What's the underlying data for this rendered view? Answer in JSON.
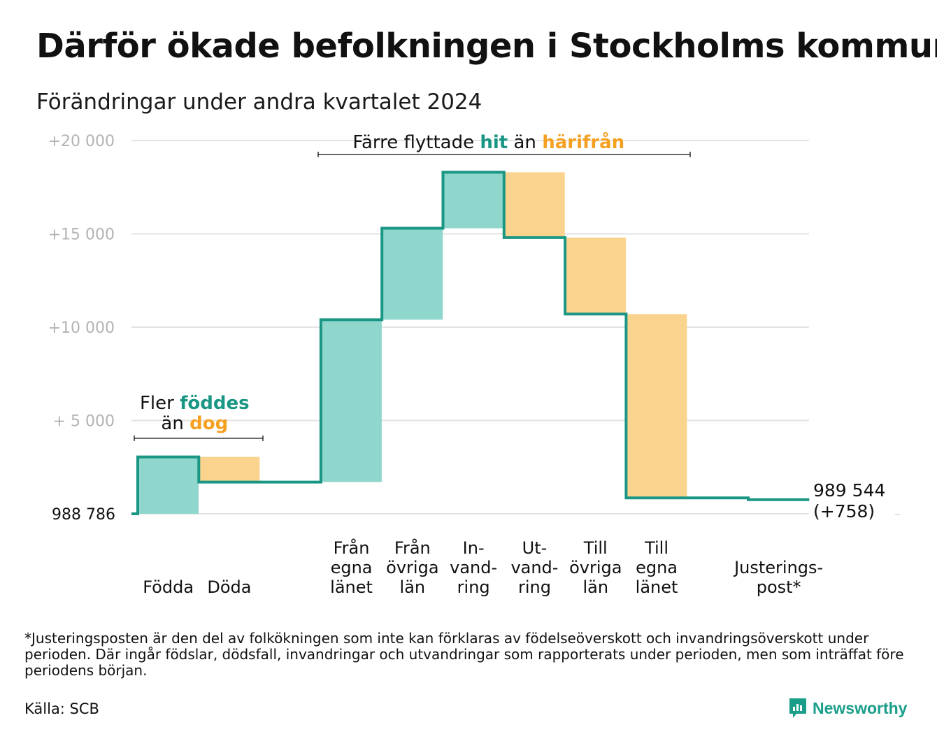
{
  "title": "Därför ökade befolkningen i Stockholms kommun",
  "subtitle": "Förändringar under andra kvartalet 2024",
  "footnote": "*Justeringsposten är den del av folkökningen som inte kan förklaras av födelseöverskott och invandringsöverskott under perioden. Där ingår födslar, dödsfall, invandringar och utvandringar som rapporterats under perioden, men som inträffat före periodens början.",
  "source": "Källa: SCB",
  "logo_text": "Newsworthy",
  "colors": {
    "inflow": "#8fd6cc",
    "outflow": "#fad48e",
    "line": "#1a9684",
    "inflow_text": "#1a9684",
    "outflow_text": "#f5a020",
    "grid": "#e3e3e3",
    "tick": "#b3b3b3"
  },
  "chart_data": {
    "type": "waterfall",
    "base_label": "988  786",
    "end_value_label": "989 544",
    "end_change_label": "(+758)",
    "y_ticks": [
      {
        "value": 5000,
        "label": "+  5  000"
      },
      {
        "value": 10000,
        "label": "+10   000"
      },
      {
        "value": 15000,
        "label": "+15   000"
      },
      {
        "value": 20000,
        "label": "+20   000"
      }
    ],
    "ylim": [
      0,
      20000
    ],
    "steps": [
      {
        "category": "Födda",
        "label_lines": [
          "Födda"
        ],
        "start": 0,
        "end": 3050,
        "kind": "inflow"
      },
      {
        "category": "Döda",
        "label_lines": [
          "Döda"
        ],
        "start": 3050,
        "end": 1700,
        "kind": "outflow"
      },
      {
        "category": "",
        "label_lines": [],
        "start": 1700,
        "end": 1700,
        "kind": "none"
      },
      {
        "category": "Från egna länet",
        "label_lines": [
          "Från",
          "egna",
          "länet"
        ],
        "start": 1700,
        "end": 10400,
        "kind": "inflow"
      },
      {
        "category": "Från övriga län",
        "label_lines": [
          "Från",
          "övriga",
          "län"
        ],
        "start": 10400,
        "end": 15300,
        "kind": "inflow"
      },
      {
        "category": "Invandring",
        "label_lines": [
          "In-",
          "vand-",
          "ring"
        ],
        "start": 15300,
        "end": 18300,
        "kind": "inflow"
      },
      {
        "category": "Utvandring",
        "label_lines": [
          "Ut-",
          "vand-",
          "ring"
        ],
        "start": 18300,
        "end": 14800,
        "kind": "outflow"
      },
      {
        "category": "Till övriga län",
        "label_lines": [
          "Till",
          "övriga",
          "län"
        ],
        "start": 14800,
        "end": 10700,
        "kind": "outflow"
      },
      {
        "category": "Till egna länet",
        "label_lines": [
          "Till",
          "egna",
          "länet"
        ],
        "start": 10700,
        "end": 850,
        "kind": "outflow"
      },
      {
        "category": "",
        "label_lines": [],
        "start": 850,
        "end": 850,
        "kind": "none"
      },
      {
        "category": "Justeringspost*",
        "label_lines": [
          "Justerings-",
          "post*"
        ],
        "start": 850,
        "end": 758,
        "kind": "none"
      }
    ],
    "annotations": [
      {
        "id": "births",
        "line1_a": "Fler ",
        "line1_b": "föddes",
        "line2_a": "än ",
        "line2_b": "dog",
        "from_step": 0,
        "to_step": 1
      },
      {
        "id": "migration",
        "line1_a": "Färre flyttade ",
        "line1_b": "hit",
        "line1_c": " än ",
        "line1_d": "härifrån",
        "from_step": 3,
        "to_step": 8
      }
    ],
    "grid": true
  }
}
